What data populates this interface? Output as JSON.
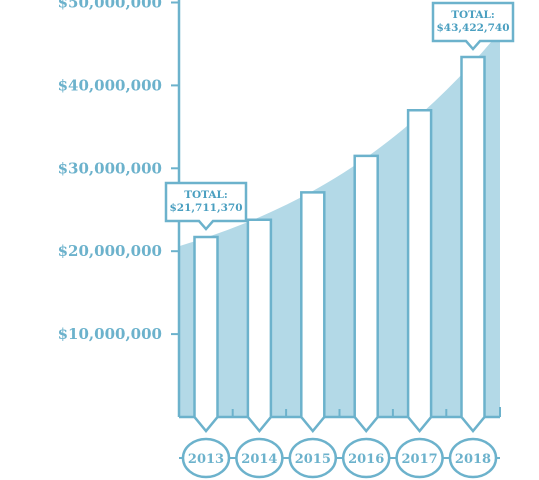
{
  "colors": {
    "accent": "#6cb2cc",
    "area_fill": "#b3d9e7",
    "bar_fill": "#ffffff",
    "text": "#4a9fc0"
  },
  "chart_data": {
    "type": "bar",
    "categories": [
      "2013",
      "2014",
      "2015",
      "2016",
      "2017",
      "2018"
    ],
    "values": [
      21711370,
      23800000,
      27100000,
      31500000,
      37000000,
      43422740
    ],
    "ylim": [
      0,
      50000000
    ],
    "yticks": [
      {
        "value": 10000000,
        "label": "$10,000,000"
      },
      {
        "value": 20000000,
        "label": "$20,000,000"
      },
      {
        "value": 30000000,
        "label": "$30,000,000"
      },
      {
        "value": 40000000,
        "label": "$40,000,000"
      },
      {
        "value": 50000000,
        "label": "$50,000,000"
      }
    ],
    "annotations": [
      {
        "category": "2013",
        "title": "TOTAL:",
        "value": "$21,711,370"
      },
      {
        "category": "2018",
        "title": "TOTAL:",
        "value": "$43,422,740"
      }
    ],
    "grid": false,
    "legend": "none"
  }
}
